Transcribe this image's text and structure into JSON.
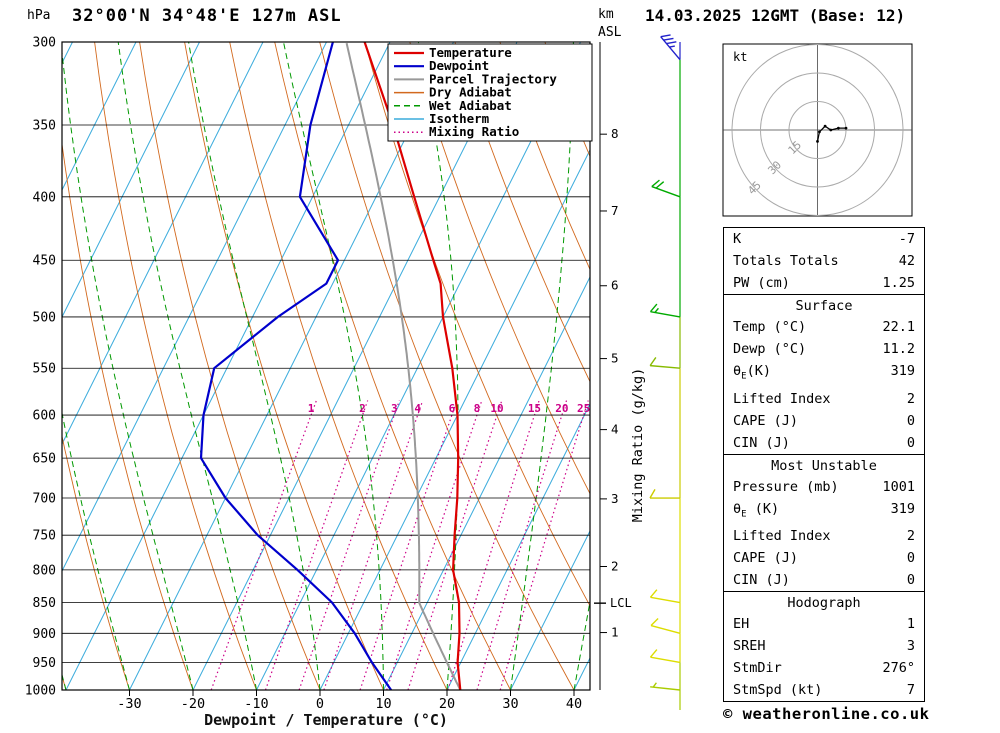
{
  "header": {
    "station_title": "32°00'N 34°48'E 127m ASL",
    "pressure_unit": "hPa",
    "altitude_unit": "km",
    "altitude_ref": "ASL",
    "run_datetime": "14.03.2025 12GMT (Base: 12)"
  },
  "legend": [
    {
      "key": "temperature",
      "label": "Temperature",
      "color": "#dd0000",
      "width": 2.2,
      "dash": ""
    },
    {
      "key": "dewpoint",
      "label": "Dewpoint",
      "color": "#0000cc",
      "width": 2.2,
      "dash": ""
    },
    {
      "key": "parcel",
      "label": "Parcel Trajectory",
      "color": "#999999",
      "width": 2,
      "dash": ""
    },
    {
      "key": "dry_adiabat",
      "label": "Dry Adiabat",
      "color": "#d2691e",
      "width": 0.9,
      "dash": ""
    },
    {
      "key": "wet_adiabat",
      "label": "Wet Adiabat",
      "color": "#009900",
      "width": 1,
      "dash": "6,4"
    },
    {
      "key": "isotherm",
      "label": "Isotherm",
      "color": "#3aabdc",
      "width": 1,
      "dash": ""
    },
    {
      "key": "mixing_ratio",
      "label": "Mixing Ratio",
      "color": "#cc0088",
      "width": 1.2,
      "dash": "1.5,3"
    }
  ],
  "axes": {
    "x_title": "Dewpoint / Temperature (°C)",
    "right_title": "Mixing Ratio (g/kg)",
    "pressure_ticks": [
      300,
      350,
      400,
      450,
      500,
      550,
      600,
      650,
      700,
      750,
      800,
      850,
      900,
      950,
      1000
    ],
    "temp_ticks": [
      -30,
      -20,
      -10,
      0,
      10,
      20,
      30,
      40
    ],
    "km_ticks": [
      1,
      2,
      3,
      4,
      5,
      6,
      7,
      8
    ],
    "mixing_ratio_values": [
      1,
      2,
      3,
      4,
      6,
      8,
      10,
      15,
      20,
      25
    ],
    "lcl_label": "LCL",
    "lcl_pressure": 851
  },
  "chart_data": {
    "type": "skewt-logp",
    "pressure_range_hpa": [
      300,
      1000
    ],
    "temperature_profile": {
      "pressure": [
        1000,
        950,
        900,
        850,
        800,
        750,
        700,
        650,
        600,
        550,
        500,
        470,
        450,
        400,
        350,
        300
      ],
      "temp_c": [
        22.1,
        19.5,
        17.5,
        15.0,
        11.5,
        9.0,
        6.5,
        3.5,
        0.0,
        -4.5,
        -10.0,
        -13.0,
        -16.0,
        -24.0,
        -33.0,
        -44.0
      ]
    },
    "dewpoint_profile": {
      "pressure": [
        1000,
        950,
        900,
        850,
        800,
        750,
        700,
        650,
        600,
        550,
        500,
        470,
        450,
        400,
        350,
        300
      ],
      "temp_c": [
        11.2,
        6.0,
        1.0,
        -5.0,
        -13.0,
        -22.0,
        -30.0,
        -37.0,
        -40.0,
        -42.0,
        -36.0,
        -31.0,
        -31.0,
        -42.0,
        -46.0,
        -49.0
      ]
    },
    "parcel": {
      "surface_temp_c": 22.1,
      "surface_dewpoint_c": 11.2
    },
    "wind_barbs": [
      {
        "pressure": 310,
        "dir_deg": 320,
        "speed_kt": 35,
        "color": "#2222cc"
      },
      {
        "pressure": 400,
        "dir_deg": 290,
        "speed_kt": 20,
        "color": "#00aa00"
      },
      {
        "pressure": 500,
        "dir_deg": 280,
        "speed_kt": 15,
        "color": "#00aa00"
      },
      {
        "pressure": 550,
        "dir_deg": 275,
        "speed_kt": 10,
        "color": "#88bb00"
      },
      {
        "pressure": 700,
        "dir_deg": 270,
        "speed_kt": 10,
        "color": "#cccc00"
      },
      {
        "pressure": 850,
        "dir_deg": 280,
        "speed_kt": 10,
        "color": "#dddd00"
      },
      {
        "pressure": 900,
        "dir_deg": 285,
        "speed_kt": 10,
        "color": "#dddd00"
      },
      {
        "pressure": 950,
        "dir_deg": 280,
        "speed_kt": 10,
        "color": "#dddd00"
      },
      {
        "pressure": 1000,
        "dir_deg": 276,
        "speed_kt": 7,
        "color": "#aacc00"
      }
    ]
  },
  "hodograph": {
    "unit": "kt",
    "rings_kt": [
      15,
      30,
      45
    ],
    "trace_uv_kt": [
      [
        0,
        -6
      ],
      [
        1,
        -1
      ],
      [
        4,
        2
      ],
      [
        7,
        0
      ],
      [
        11,
        1
      ],
      [
        15,
        1
      ]
    ]
  },
  "tables": {
    "sections": [
      {
        "title": null,
        "rows": [
          {
            "label": "K",
            "value": "-7"
          },
          {
            "label": "Totals Totals",
            "value": "42"
          },
          {
            "label": "PW (cm)",
            "value": "1.25"
          }
        ]
      },
      {
        "title": "Surface",
        "rows": [
          {
            "label": "Temp (°C)",
            "value": "22.1"
          },
          {
            "label": "Dewp (°C)",
            "value": "11.2"
          },
          {
            "label": "θ_E(K)",
            "value": "319"
          },
          {
            "label": "Lifted Index",
            "value": "2"
          },
          {
            "label": "CAPE (J)",
            "value": "0"
          },
          {
            "label": "CIN (J)",
            "value": "0"
          }
        ]
      },
      {
        "title": "Most Unstable",
        "rows": [
          {
            "label": "Pressure (mb)",
            "value": "1001"
          },
          {
            "label": "θ_E (K)",
            "value": "319"
          },
          {
            "label": "Lifted Index",
            "value": "2"
          },
          {
            "label": "CAPE (J)",
            "value": "0"
          },
          {
            "label": "CIN (J)",
            "value": "0"
          }
        ]
      },
      {
        "title": "Hodograph",
        "rows": [
          {
            "label": "EH",
            "value": "1"
          },
          {
            "label": "SREH",
            "value": "3"
          },
          {
            "label": "StmDir",
            "value": "276°"
          },
          {
            "label": "StmSpd (kt)",
            "value": "7"
          }
        ]
      }
    ]
  },
  "footer": {
    "credit": "© weatheronline.co.uk"
  }
}
